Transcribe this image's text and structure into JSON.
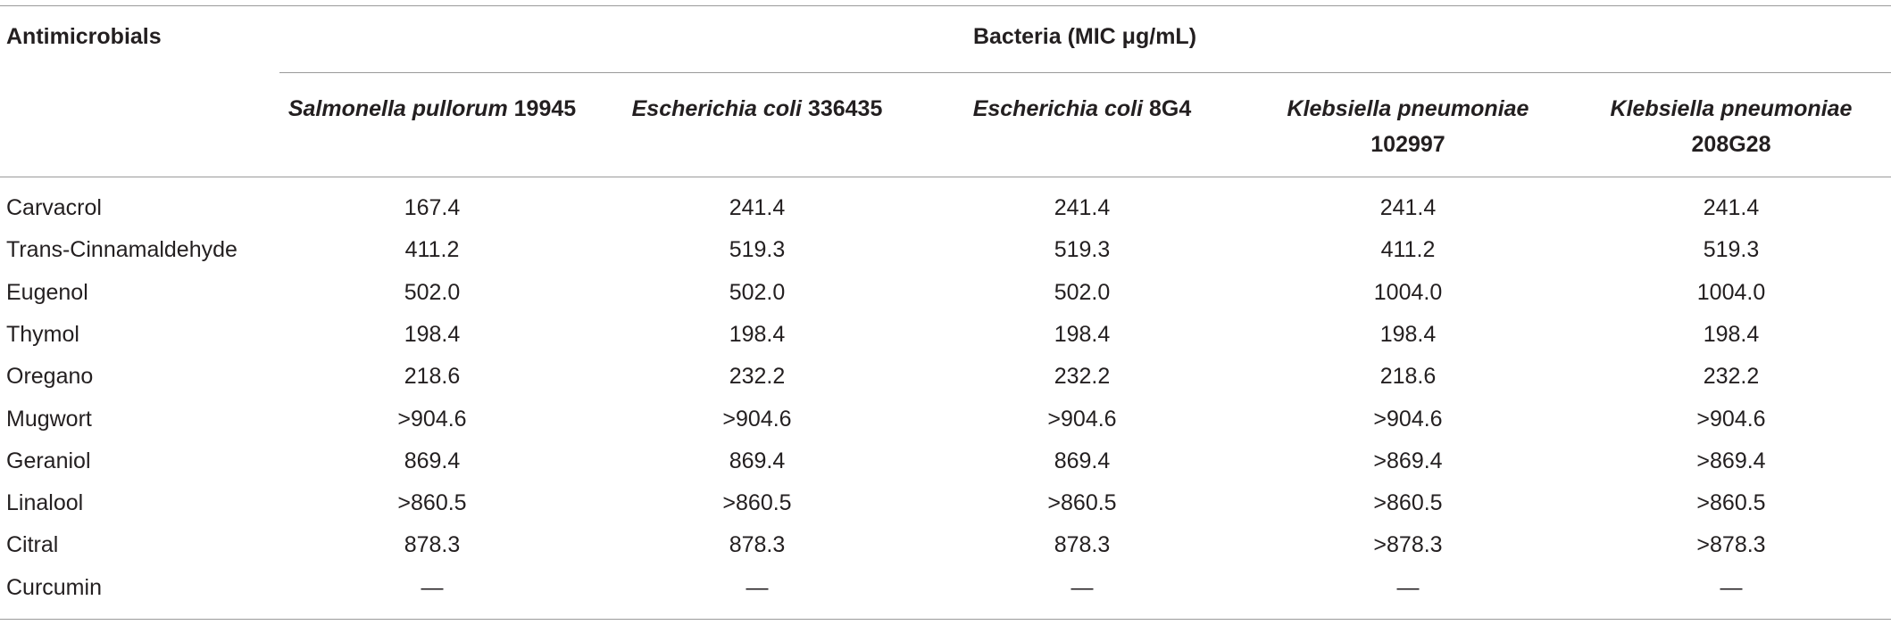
{
  "table": {
    "stub_header": "Antimicrobials",
    "group_header": "Bacteria (MIC μg/mL)",
    "columns": [
      {
        "species": "Salmonella pullorum",
        "strain": "19945"
      },
      {
        "species": "Escherichia coli",
        "strain": "336435"
      },
      {
        "species": "Escherichia coli",
        "strain": "8G4"
      },
      {
        "species": "Klebsiella pneumoniae",
        "strain": "102997"
      },
      {
        "species": "Klebsiella pneumoniae",
        "strain": "208G28"
      }
    ],
    "rows": [
      [
        "Carvacrol",
        "167.4",
        "241.4",
        "241.4",
        "241.4",
        "241.4"
      ],
      [
        "Trans-Cinnamaldehyde",
        "411.2",
        "519.3",
        "519.3",
        "411.2",
        "519.3"
      ],
      [
        "Eugenol",
        "502.0",
        "502.0",
        "502.0",
        "1004.0",
        "1004.0"
      ],
      [
        "Thymol",
        "198.4",
        "198.4",
        "198.4",
        "198.4",
        "198.4"
      ],
      [
        "Oregano",
        "218.6",
        "232.2",
        "232.2",
        "218.6",
        "232.2"
      ],
      [
        "Mugwort",
        ">904.6",
        ">904.6",
        ">904.6",
        ">904.6",
        ">904.6"
      ],
      [
        "Geraniol",
        "869.4",
        "869.4",
        "869.4",
        ">869.4",
        ">869.4"
      ],
      [
        "Linalool",
        ">860.5",
        ">860.5",
        ">860.5",
        ">860.5",
        ">860.5"
      ],
      [
        "Citral",
        "878.3",
        "878.3",
        "878.3",
        ">878.3",
        ">878.3"
      ],
      [
        "Curcumin",
        "—",
        "—",
        "—",
        "—",
        "—"
      ]
    ]
  }
}
